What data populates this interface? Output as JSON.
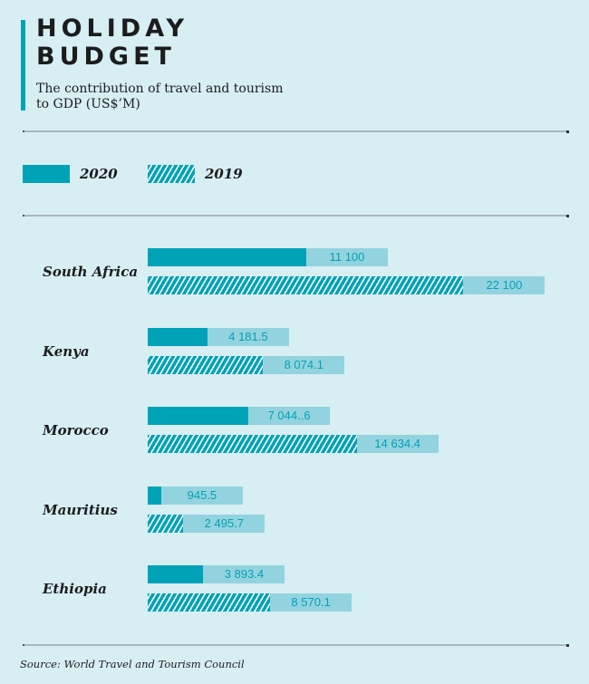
{
  "header": {
    "title_line1": "HOLIDAY",
    "title_line2": "BUDGET",
    "subtitle_line1": "The contribution of travel and tourism",
    "subtitle_line2": "to GDP (US$’M)"
  },
  "colors": {
    "background": "#d7eef3",
    "accent": "#00a2b8",
    "label_box": "#93d3df",
    "hatch_stripe": "#ffffff",
    "text": "#1c1c1c"
  },
  "chart_data": {
    "type": "bar",
    "orientation": "horizontal",
    "title": "HOLIDAY BUDGET",
    "subtitle": "The contribution of travel and tourism to GDP (US$’M)",
    "xlabel": "",
    "ylabel": "",
    "grid": false,
    "legend_position": "top-left",
    "legend": [
      {
        "name": "2020",
        "style": "solid"
      },
      {
        "name": "2019",
        "style": "hatched"
      }
    ],
    "categories": [
      "South Africa",
      "Kenya",
      "Morocco",
      "Mauritius",
      "Ethiopia"
    ],
    "series": [
      {
        "name": "2020",
        "values": [
          11100,
          4181.5,
          7044.6,
          945.5,
          3893.4
        ],
        "labels": [
          "11 100",
          "4 181.5",
          "7 044..6",
          "945.5",
          "3 893.4"
        ]
      },
      {
        "name": "2019",
        "values": [
          22100,
          8074.1,
          14634.4,
          2495.7,
          8570.1
        ],
        "labels": [
          "22 100",
          "8 074.1",
          "14 634.4",
          "2 495.7",
          "8 570.1"
        ]
      }
    ]
  },
  "footer": {
    "source": "Source: World Travel and Tourism Council"
  }
}
